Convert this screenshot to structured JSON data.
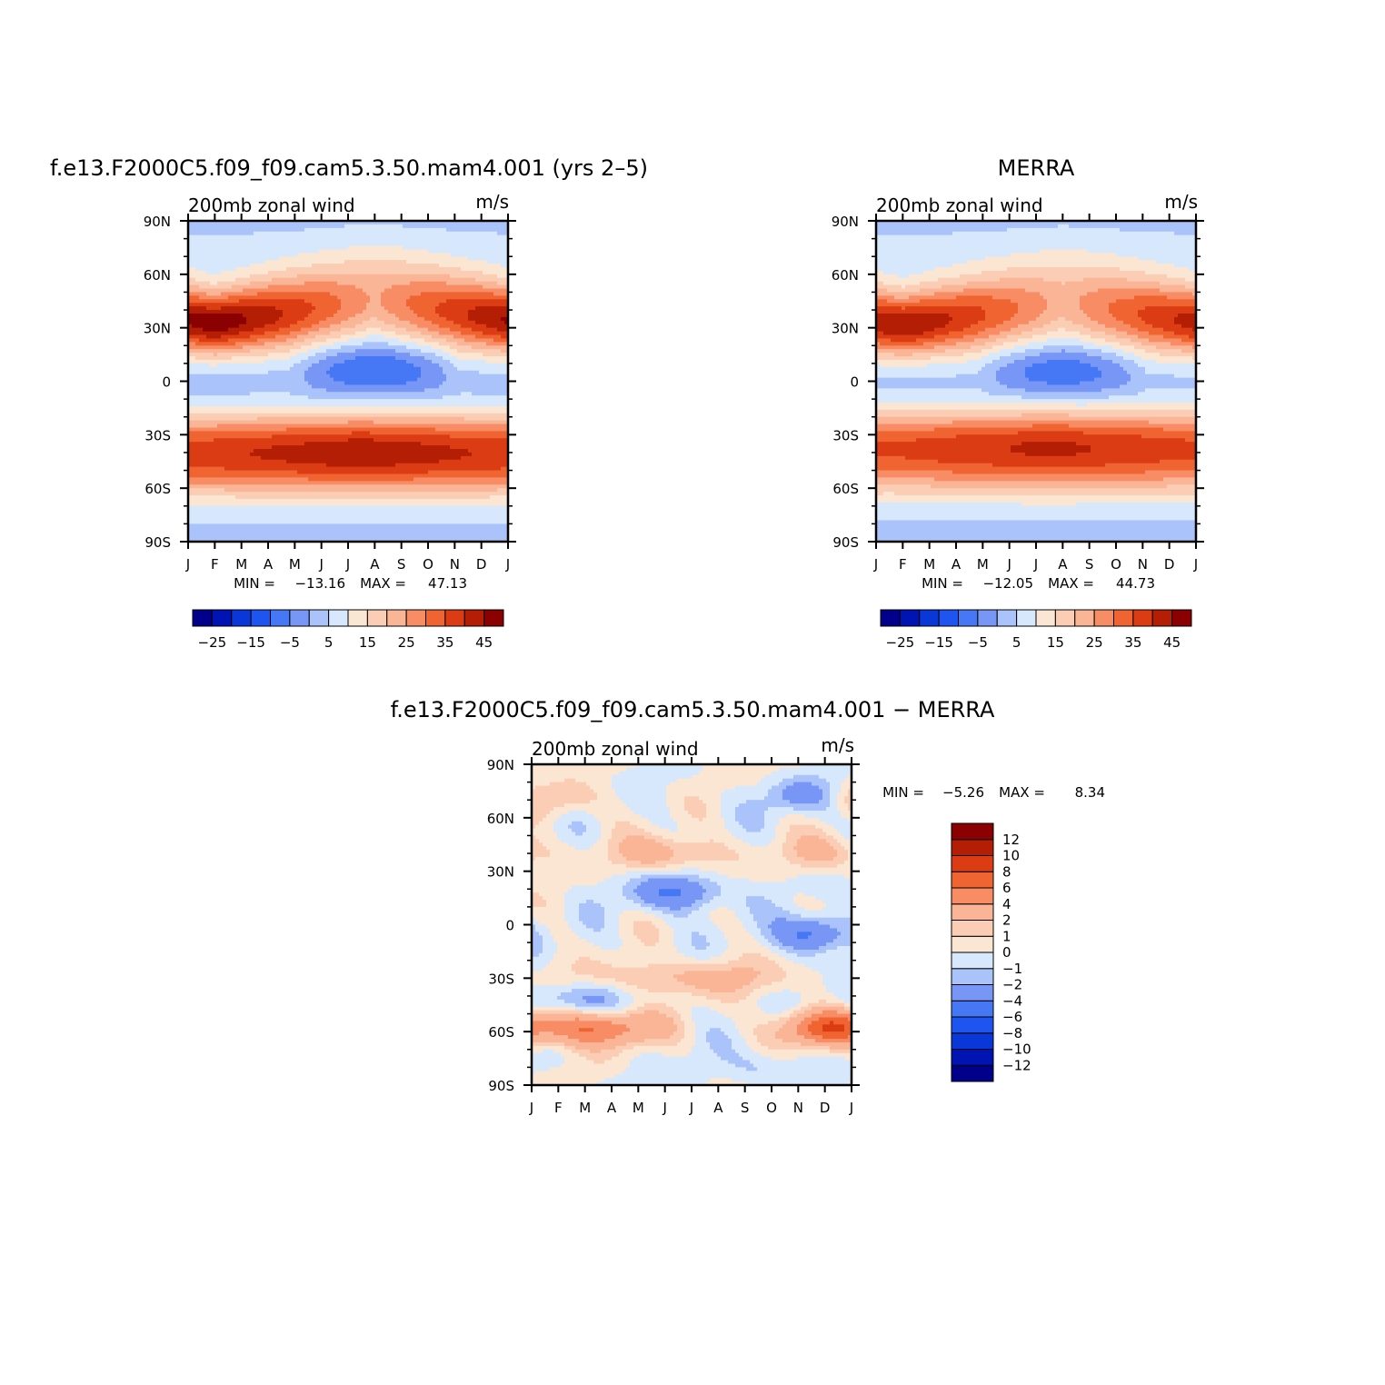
{
  "chart_data": [
    {
      "type": "heatmap",
      "title": "f.e13.F2000C5.f09_f09.cam5.3.50.mam4.001 (yrs 2–5)",
      "left_label": "200mb zonal wind",
      "right_label": "m/s",
      "x_tick_labels": [
        "J",
        "F",
        "M",
        "A",
        "M",
        "J",
        "J",
        "A",
        "S",
        "O",
        "N",
        "D",
        "J"
      ],
      "y_tick_labels": [
        "90N",
        "60N",
        "30N",
        "0",
        "30S",
        "60S",
        "90S"
      ],
      "ylim": [
        -90,
        90
      ],
      "min_label": "MIN =",
      "min_value": "−13.16",
      "max_label": "MAX =",
      "max_value": "47.13",
      "min": -13.16,
      "max": 47.13,
      "colorbar": {
        "orientation": "horizontal",
        "levels": [
          -30,
          -25,
          -20,
          -15,
          -10,
          -5,
          0,
          5,
          10,
          15,
          20,
          25,
          30,
          35,
          40,
          45
        ],
        "colors": [
          "#00008b",
          "#0014b4",
          "#0a37d7",
          "#1e55f0",
          "#4678f5",
          "#7896f5",
          "#aac3fa",
          "#d7e8fc",
          "#fae6d2",
          "#fbcdb4",
          "#fab496",
          "#f88c64",
          "#f06432",
          "#dc3c14",
          "#b41e05",
          "#8b0000"
        ],
        "tick_labels": [
          "−25",
          "−15",
          "−5",
          "5",
          "15",
          "25",
          "35",
          "45"
        ]
      },
      "field": {
        "jet_nh": {
          "amp": 47,
          "lat": 32,
          "peak_month": 1,
          "seasonal_shift": 12
        },
        "jet_sh": {
          "amp": 42,
          "lat": -38,
          "peak_month": 6.5
        },
        "easterly": {
          "amp": -13,
          "lat": 8,
          "peak_month": 7
        }
      }
    },
    {
      "type": "heatmap",
      "title": "MERRA",
      "left_label": "200mb zonal wind",
      "right_label": "m/s",
      "x_tick_labels": [
        "J",
        "F",
        "M",
        "A",
        "M",
        "J",
        "J",
        "A",
        "S",
        "O",
        "N",
        "D",
        "J"
      ],
      "y_tick_labels": [
        "90N",
        "60N",
        "30N",
        "0",
        "30S",
        "60S",
        "90S"
      ],
      "ylim": [
        -90,
        90
      ],
      "min_label": "MIN =",
      "min_value": "−12.05",
      "max_label": "MAX =",
      "max_value": "44.73",
      "min": -12.05,
      "max": 44.73,
      "colorbar": {
        "orientation": "horizontal",
        "levels": [
          -30,
          -25,
          -20,
          -15,
          -10,
          -5,
          0,
          5,
          10,
          15,
          20,
          25,
          30,
          35,
          40,
          45
        ],
        "colors": [
          "#00008b",
          "#0014b4",
          "#0a37d7",
          "#1e55f0",
          "#4678f5",
          "#7896f5",
          "#aac3fa",
          "#d7e8fc",
          "#fae6d2",
          "#fbcdb4",
          "#fab496",
          "#f88c64",
          "#f06432",
          "#dc3c14",
          "#b41e05",
          "#8b0000"
        ],
        "tick_labels": [
          "−25",
          "−15",
          "−5",
          "5",
          "15",
          "25",
          "35",
          "45"
        ]
      },
      "field": {
        "jet_nh": {
          "amp": 44,
          "lat": 31,
          "peak_month": 1,
          "seasonal_shift": 11
        },
        "jet_sh": {
          "amp": 40,
          "lat": -36,
          "peak_month": 6.5
        },
        "easterly": {
          "amp": -12,
          "lat": 7,
          "peak_month": 7
        }
      }
    },
    {
      "type": "heatmap",
      "title": "f.e13.F2000C5.f09_f09.cam5.3.50.mam4.001 − MERRA",
      "left_label": "200mb zonal wind",
      "right_label": "m/s",
      "x_tick_labels": [
        "J",
        "F",
        "M",
        "A",
        "M",
        "J",
        "J",
        "A",
        "S",
        "O",
        "N",
        "D",
        "J"
      ],
      "y_tick_labels": [
        "90N",
        "60N",
        "30N",
        "0",
        "30S",
        "60S",
        "90S"
      ],
      "ylim": [
        -90,
        90
      ],
      "min_label": "MIN =",
      "min_value": "−5.26",
      "max_label": "MAX =",
      "max_value": "8.34",
      "min": -5.26,
      "max": 8.34,
      "colorbar": {
        "orientation": "vertical",
        "levels": [
          -14,
          -12,
          -10,
          -8,
          -6,
          -4,
          -2,
          -1,
          0,
          1,
          2,
          4,
          6,
          8,
          10,
          12,
          14
        ],
        "colors": [
          "#00008b",
          "#0014b4",
          "#0a37d7",
          "#1e55f0",
          "#4678f5",
          "#7896f5",
          "#aac3fa",
          "#d7e8fc",
          "#fae6d2",
          "#fbcdb4",
          "#fab496",
          "#f88c64",
          "#f06432",
          "#dc3c14",
          "#b41e05",
          "#8b0000"
        ],
        "tick_labels": [
          "12",
          "10",
          "8",
          "6",
          "4",
          "2",
          "1",
          "0",
          "−1",
          "−2",
          "−4",
          "−6",
          "−8",
          "−10",
          "−12"
        ]
      },
      "field": {
        "bands": [
          {
            "lat": -58,
            "amp": 6,
            "month": 2.5,
            "width": 2.2
          },
          {
            "lat": -58,
            "amp": 7,
            "month": 11,
            "width": 1.6
          },
          {
            "lat": -42,
            "amp": -2.5,
            "month": 1.5,
            "width": 2
          },
          {
            "lat": -30,
            "amp": 2.5,
            "month": 6,
            "width": 4
          },
          {
            "lat": 18,
            "amp": -4,
            "month": 5.5,
            "width": 1.8
          },
          {
            "lat": -5,
            "amp": -5,
            "month": 10.5,
            "width": 1.3
          },
          {
            "lat": 40,
            "amp": 3,
            "month": 5,
            "width": 2
          },
          {
            "lat": 40,
            "amp": 2.5,
            "month": 11,
            "width": 1.5
          },
          {
            "lat": 70,
            "amp": 2,
            "month": 1,
            "width": 1.5
          },
          {
            "lat": 72,
            "amp": -2.5,
            "month": 10,
            "width": 1.3
          },
          {
            "lat": -80,
            "amp": -1.5,
            "month": 8.5,
            "width": 1.5
          }
        ]
      }
    }
  ]
}
